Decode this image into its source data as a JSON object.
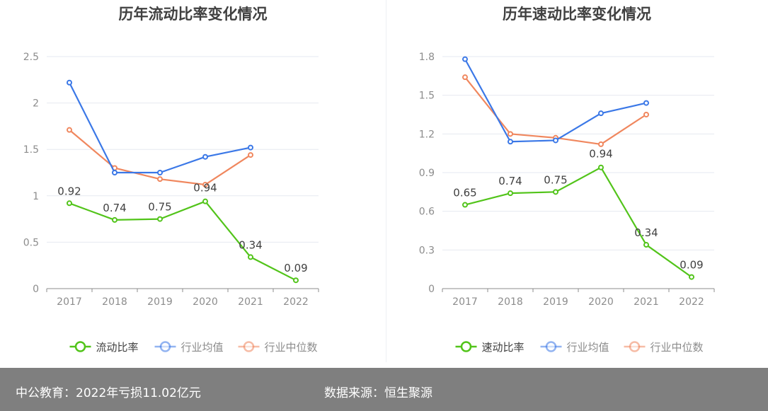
{
  "footer": {
    "left_text": "中公教育：2022年亏损11.02亿元",
    "right_text": "数据来源：恒生聚源"
  },
  "chart_data": [
    {
      "type": "line",
      "title": "历年流动比率变化情况",
      "categories": [
        "2017",
        "2018",
        "2019",
        "2020",
        "2021",
        "2022"
      ],
      "ylim": [
        0,
        2.5
      ],
      "yticks": [
        "0",
        "0.5",
        "1",
        "1.5",
        "2",
        "2.5"
      ],
      "grid": true,
      "legend_position": "bottom",
      "series": [
        {
          "name": "流动比率",
          "color": "#52c41a",
          "values": [
            0.92,
            0.74,
            0.75,
            0.94,
            0.34,
            0.09
          ],
          "value_labels": [
            "0.92",
            "0.74",
            "0.75",
            "0.94",
            "0.34",
            "0.09"
          ]
        },
        {
          "name": "行业均值",
          "color": "#3b78e7",
          "values": [
            2.22,
            1.25,
            1.25,
            1.42,
            1.52,
            null
          ]
        },
        {
          "name": "行业中位数",
          "color": "#f0875e",
          "values": [
            1.71,
            1.3,
            1.18,
            1.12,
            1.44,
            null
          ]
        }
      ]
    },
    {
      "type": "line",
      "title": "历年速动比率变化情况",
      "categories": [
        "2017",
        "2018",
        "2019",
        "2020",
        "2021",
        "2022"
      ],
      "ylim": [
        0,
        1.8
      ],
      "yticks": [
        "0",
        "0.3",
        "0.6",
        "0.9",
        "1.2",
        "1.5",
        "1.8"
      ],
      "grid": true,
      "legend_position": "bottom",
      "series": [
        {
          "name": "速动比率",
          "color": "#52c41a",
          "values": [
            0.65,
            0.74,
            0.75,
            0.94,
            0.34,
            0.09
          ],
          "value_labels": [
            "0.65",
            "0.74",
            "0.75",
            "0.94",
            "0.34",
            "0.09"
          ]
        },
        {
          "name": "行业均值",
          "color": "#3b78e7",
          "values": [
            1.78,
            1.14,
            1.15,
            1.36,
            1.44,
            null
          ]
        },
        {
          "name": "行业中位数",
          "color": "#f0875e",
          "values": [
            1.64,
            1.2,
            1.17,
            1.12,
            1.35,
            null
          ]
        }
      ]
    }
  ]
}
